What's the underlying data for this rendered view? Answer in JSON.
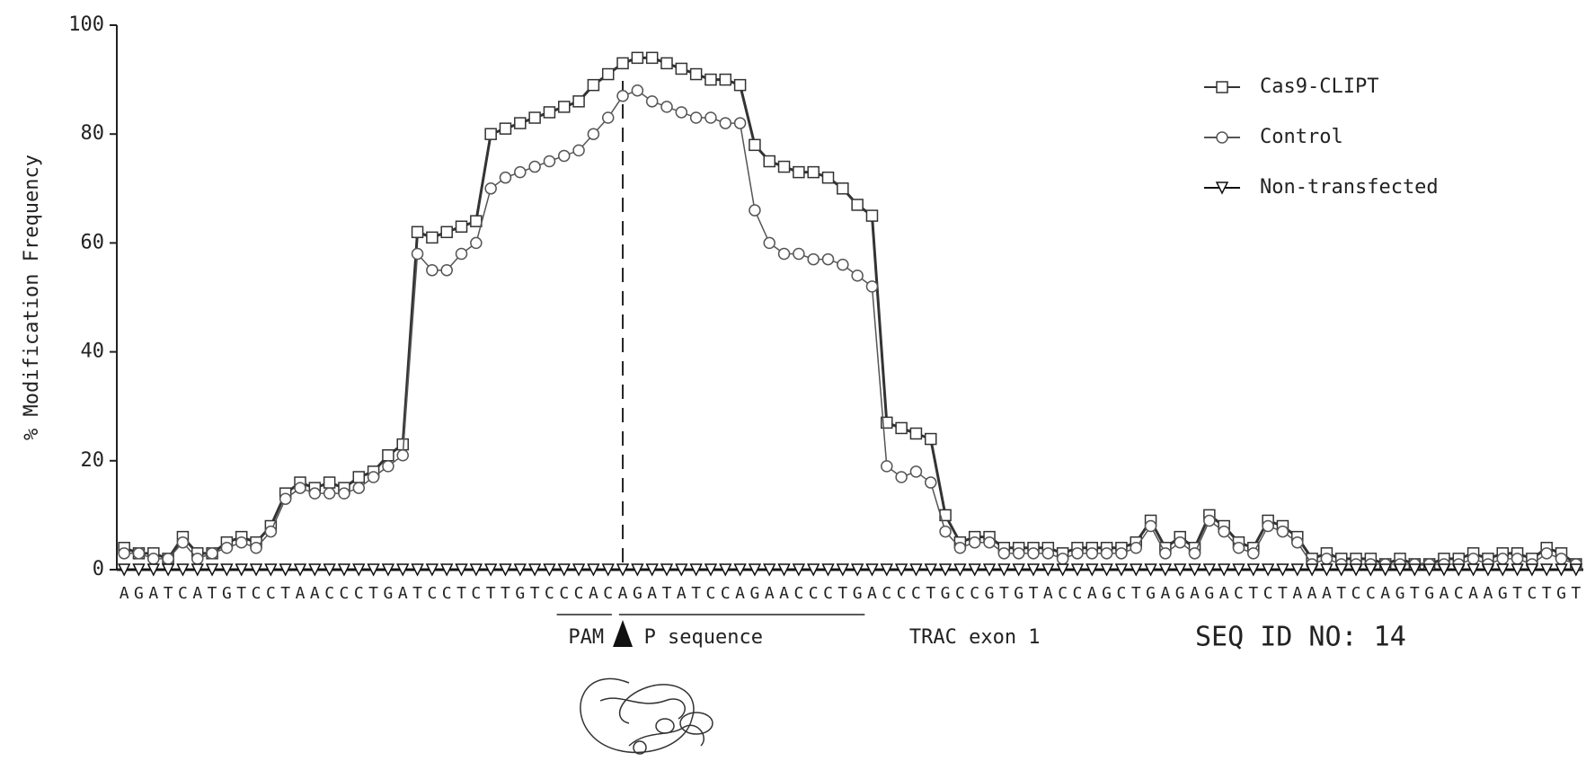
{
  "chart_data": {
    "type": "line",
    "y_label": "% Modification Frequency",
    "categories": [
      "A",
      "G",
      "A",
      "T",
      "C",
      "A",
      "T",
      "G",
      "T",
      "C",
      "C",
      "T",
      "A",
      "A",
      "C",
      "C",
      "C",
      "T",
      "G",
      "A",
      "T",
      "C",
      "C",
      "T",
      "C",
      "T",
      "T",
      "G",
      "T",
      "C",
      "C",
      "C",
      "A",
      "C",
      "A",
      "G",
      "A",
      "T",
      "A",
      "T",
      "C",
      "C",
      "A",
      "G",
      "A",
      "A",
      "C",
      "C",
      "C",
      "T",
      "G",
      "A",
      "C",
      "C",
      "C",
      "T",
      "G",
      "C",
      "C",
      "G",
      "T",
      "G",
      "T",
      "A",
      "C",
      "C",
      "A",
      "G",
      "C",
      "T",
      "G",
      "A",
      "G",
      "A",
      "G",
      "A",
      "C",
      "T",
      "C",
      "T",
      "A",
      "A",
      "A",
      "T",
      "C",
      "C",
      "A",
      "G",
      "T",
      "G",
      "A",
      "C",
      "A",
      "A",
      "G",
      "T",
      "C",
      "T",
      "G",
      "T"
    ],
    "series": [
      {
        "name": "Cas9-CLIPT",
        "color": "#333333",
        "marker": "square",
        "values": [
          4,
          3,
          3,
          2,
          6,
          3,
          3,
          5,
          6,
          5,
          8,
          14,
          16,
          15,
          16,
          15,
          17,
          18,
          21,
          23,
          62,
          61,
          62,
          63,
          64,
          80,
          81,
          82,
          83,
          84,
          85,
          86,
          89,
          91,
          93,
          94,
          94,
          93,
          92,
          91,
          90,
          90,
          89,
          78,
          75,
          74,
          73,
          73,
          72,
          70,
          67,
          65,
          27,
          26,
          25,
          24,
          10,
          5,
          6,
          6,
          4,
          4,
          4,
          4,
          3,
          4,
          4,
          4,
          4,
          5,
          9,
          4,
          6,
          4,
          10,
          8,
          5,
          4,
          9,
          8,
          6,
          2,
          3,
          2,
          2,
          2,
          1,
          2,
          1,
          1,
          2,
          2,
          3,
          2,
          3,
          3,
          2,
          4,
          3,
          1
        ]
      },
      {
        "name": "Control",
        "color": "#555555",
        "marker": "circle",
        "values": [
          3,
          3,
          2,
          2,
          5,
          2,
          3,
          4,
          5,
          4,
          7,
          13,
          15,
          14,
          14,
          14,
          15,
          17,
          19,
          21,
          58,
          55,
          55,
          58,
          60,
          70,
          72,
          73,
          74,
          75,
          76,
          77,
          80,
          83,
          87,
          88,
          86,
          85,
          84,
          83,
          83,
          82,
          82,
          66,
          60,
          58,
          58,
          57,
          57,
          56,
          54,
          52,
          19,
          17,
          18,
          16,
          7,
          4,
          5,
          5,
          3,
          3,
          3,
          3,
          2,
          3,
          3,
          3,
          3,
          4,
          8,
          3,
          5,
          3,
          9,
          7,
          4,
          3,
          8,
          7,
          5,
          1,
          2,
          1,
          1,
          1,
          1,
          1,
          1,
          1,
          1,
          1,
          2,
          1,
          2,
          2,
          1,
          3,
          2,
          1
        ]
      },
      {
        "name": "Non-transfected",
        "color": "#111111",
        "marker": "triangle",
        "values": [
          0,
          0,
          0,
          0,
          0,
          0,
          0,
          0,
          0,
          0,
          0,
          0,
          0,
          0,
          0,
          0,
          0,
          0,
          0,
          0,
          0,
          0,
          0,
          0,
          0,
          0,
          0,
          0,
          0,
          0,
          0,
          0,
          0,
          0,
          0,
          0,
          0,
          0,
          0,
          0,
          0,
          0,
          0,
          0,
          0,
          0,
          0,
          0,
          0,
          0,
          0,
          0,
          0,
          0,
          0,
          0,
          0,
          0,
          0,
          0,
          0,
          0,
          0,
          0,
          0,
          0,
          0,
          0,
          0,
          0,
          0,
          0,
          0,
          0,
          0,
          0,
          0,
          0,
          0,
          0,
          0,
          0,
          0,
          0,
          0,
          0,
          0,
          0,
          0,
          0,
          0,
          0,
          0,
          0,
          0,
          0,
          0,
          0,
          0,
          0
        ]
      }
    ],
    "ylim": [
      0,
      100
    ],
    "yticks": [
      0,
      20,
      40,
      60,
      80,
      100
    ],
    "grid": false,
    "legend": "top-right",
    "annotations": [
      "PAM",
      "P sequence",
      "TRAC exon 1",
      "SEQ ID NO: 14"
    ]
  }
}
